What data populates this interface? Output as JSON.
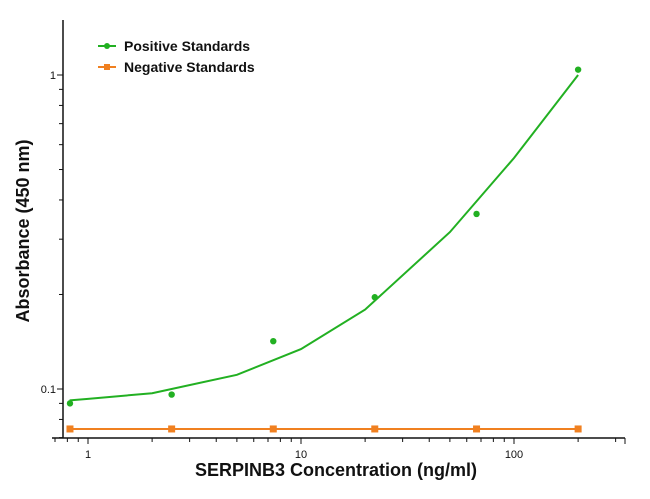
{
  "chart_data": {
    "type": "scatter",
    "title": "",
    "xlabel": "SERPINB3 Concentration (ng/ml)",
    "ylabel": "Absorbance (450 nm)",
    "xscale": "log",
    "yscale": "log",
    "xlim": [
      0.68,
      330
    ],
    "ylim": [
      0.07,
      1.5
    ],
    "xticks": [
      {
        "value": 1,
        "label": "1"
      },
      {
        "value": 10,
        "label": "10"
      },
      {
        "value": 100,
        "label": "100"
      }
    ],
    "yticks": [
      {
        "value": 0.1,
        "label": "0.1"
      },
      {
        "value": 1,
        "label": "1"
      }
    ],
    "grid": false,
    "legend_position": "top-left",
    "series": [
      {
        "name": "Positive Standards",
        "color": "#22b022",
        "marker": "circle",
        "x": [
          0.823,
          2.47,
          7.41,
          22.2,
          66.7,
          200
        ],
        "y": [
          0.09,
          0.096,
          0.142,
          0.196,
          0.361,
          1.04
        ],
        "fit_curve": {
          "x": [
            0.82,
            1,
            2,
            5,
            10,
            20,
            50,
            100,
            200
          ],
          "y": [
            0.092,
            0.093,
            0.097,
            0.111,
            0.134,
            0.179,
            0.316,
            0.544,
            1.0
          ]
        }
      },
      {
        "name": "Negative Standards",
        "color": "#f08020",
        "marker": "square",
        "x": [
          0.823,
          2.47,
          7.41,
          22.2,
          66.7,
          200
        ],
        "y": [
          0.0746,
          0.0746,
          0.0746,
          0.0746,
          0.0746,
          0.0746
        ]
      }
    ]
  }
}
